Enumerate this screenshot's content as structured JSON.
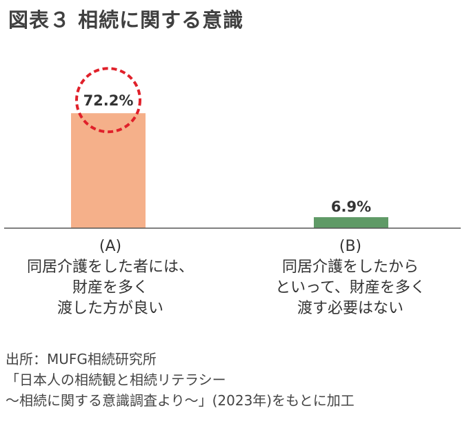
{
  "title": "図表３ 相続に関する意識",
  "chart_data": {
    "type": "bar",
    "categories": [
      "(A)",
      "(B)"
    ],
    "category_descriptions": [
      "同居介護をした者には、\n財産を多く\n渡した方が良い",
      "同居介護をしたから\nといって、財産を多く\n渡す必要はない"
    ],
    "values": [
      72.2,
      6.9
    ],
    "value_labels": [
      "72.2%",
      "6.9%"
    ],
    "bar_colors": [
      "#f5b08a",
      "#5f9a66"
    ],
    "highlight_color": "#e0202a",
    "highlight_index": 0,
    "ylim": [
      0,
      100
    ],
    "grid": false
  },
  "source": {
    "line1": "出所：MUFG相続研究所",
    "line2": "「日本人の相続観と相続リテラシー",
    "line3": "～相続に関する意識調査より～」(2023年)をもとに加工"
  }
}
